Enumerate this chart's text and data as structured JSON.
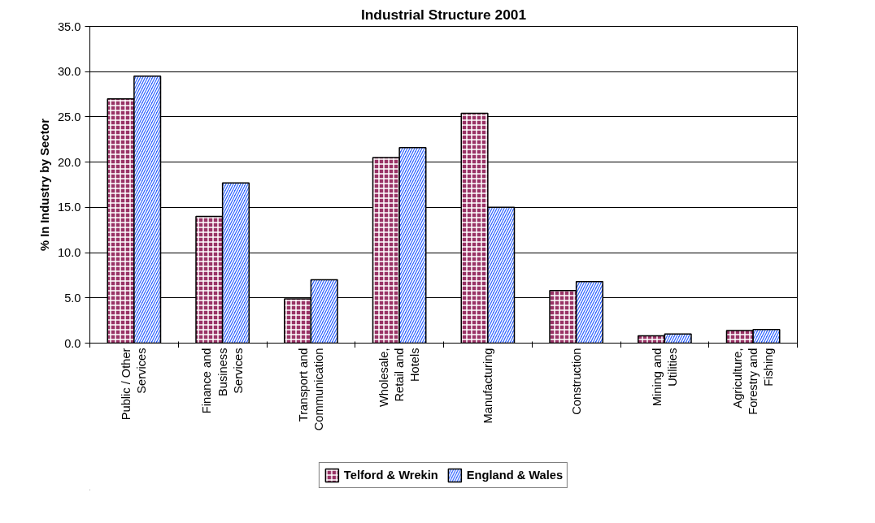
{
  "chart_data": {
    "type": "bar",
    "title": "Industrial Structure 2001",
    "ylabel": "% In Industry by Sector",
    "categories": [
      "Public / Other Services",
      "Finance and Business Services",
      "Transport and Communication",
      "Wholesale, Retail and Hotels",
      "Manufacturing",
      "Construction",
      "Mining and Utilities",
      "Agriculture, Forestry and Fishing"
    ],
    "series": [
      {
        "name": "Telford & Wrekin",
        "color": "#993366",
        "values": [
          27.0,
          14.0,
          4.9,
          20.5,
          25.4,
          5.8,
          0.8,
          1.4
        ]
      },
      {
        "name": "England & Wales",
        "color": "#3366ff",
        "values": [
          29.5,
          17.7,
          7.0,
          21.6,
          15.0,
          6.8,
          1.0,
          1.5
        ]
      }
    ],
    "ylim": [
      0,
      35
    ],
    "yticks": [
      {
        "value": 0,
        "label": "0.0"
      },
      {
        "value": 5,
        "label": "5.0"
      },
      {
        "value": 10,
        "label": "10.0"
      },
      {
        "value": 15,
        "label": "15.0"
      },
      {
        "value": 20,
        "label": "20.0"
      },
      {
        "value": 25,
        "label": "25.0"
      },
      {
        "value": 30,
        "label": "30.0"
      },
      {
        "value": 35,
        "label": "35.0"
      }
    ],
    "grid": "y",
    "legend": "bottom"
  }
}
